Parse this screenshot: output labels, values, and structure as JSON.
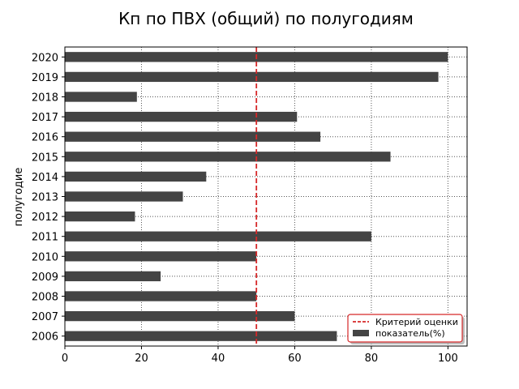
{
  "chart_data": {
    "type": "bar",
    "orientation": "horizontal",
    "title": "Кп по ПВХ (общий) по полугодиям",
    "xlabel": "",
    "ylabel": "полугодие",
    "categories": [
      "2006",
      "2007",
      "2008",
      "2009",
      "2010",
      "2011",
      "2012",
      "2013",
      "2014",
      "2015",
      "2016",
      "2017",
      "2018",
      "2019",
      "2020"
    ],
    "series": [
      {
        "name": "показатель(%)",
        "values": [
          71,
          60,
          50,
          25,
          50,
          80,
          18.3,
          30.8,
          36.9,
          85,
          66.7,
          60.6,
          18.8,
          97.5,
          100
        ],
        "color": "#444444"
      }
    ],
    "reference_line": {
      "name": "Критерий оценки",
      "x": 50,
      "color": "#d62728",
      "style": "dashed"
    },
    "xlim": [
      0,
      105
    ],
    "xticks": [
      0,
      20,
      40,
      60,
      80,
      100
    ],
    "grid": true,
    "legend": "lower-right"
  }
}
